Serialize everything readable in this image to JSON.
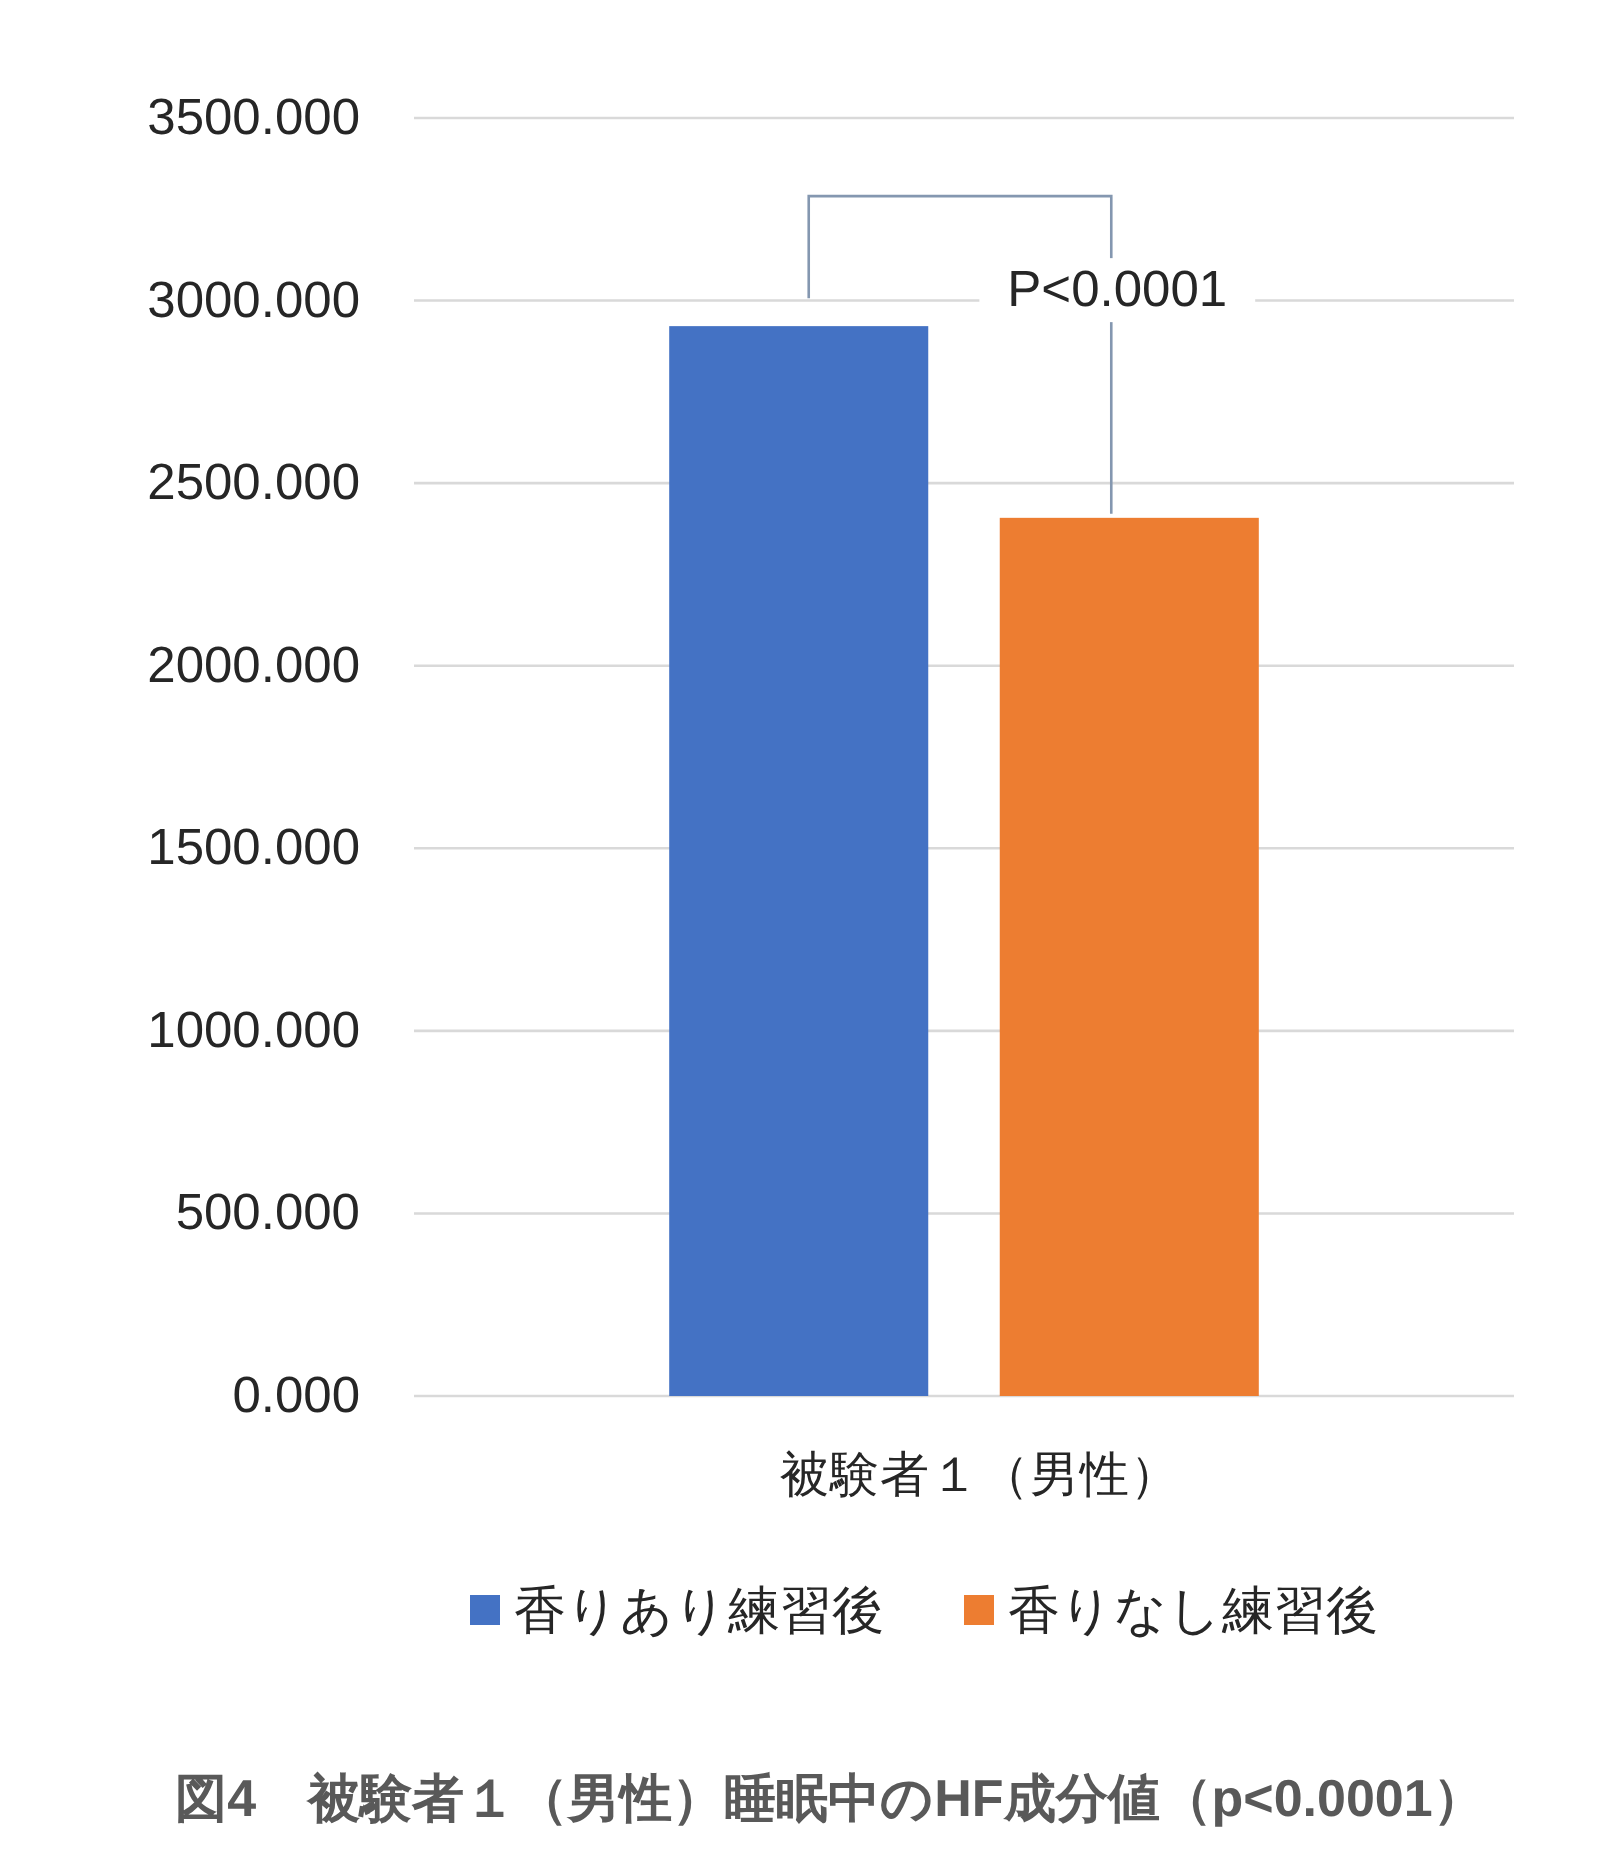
{
  "chart_data": {
    "type": "bar",
    "title": "図4　被験者１（男性）睡眠中のHF成分値（p<0.0001）",
    "categories": [
      "被験者１（男性）"
    ],
    "series": [
      {
        "name": "香りあり練習後",
        "color": "#4472c4",
        "values": [
          2930
        ]
      },
      {
        "name": "香りなし練習後",
        "color": "#ed7d31",
        "values": [
          2405
        ]
      }
    ],
    "ylim": [
      0,
      3500
    ],
    "yticks": [
      {
        "value": 0,
        "label": "0.000"
      },
      {
        "value": 500,
        "label": "500.000"
      },
      {
        "value": 1000,
        "label": "1000.000"
      },
      {
        "value": 1500,
        "label": "1500.000"
      },
      {
        "value": 2000,
        "label": "2000.000"
      },
      {
        "value": 2500,
        "label": "2500.000"
      },
      {
        "value": 3000,
        "label": "3000.000"
      },
      {
        "value": 3500,
        "label": "3500.000"
      }
    ],
    "grid": "y",
    "legend": "bottom",
    "annotations": [
      "P<0.0001"
    ]
  }
}
